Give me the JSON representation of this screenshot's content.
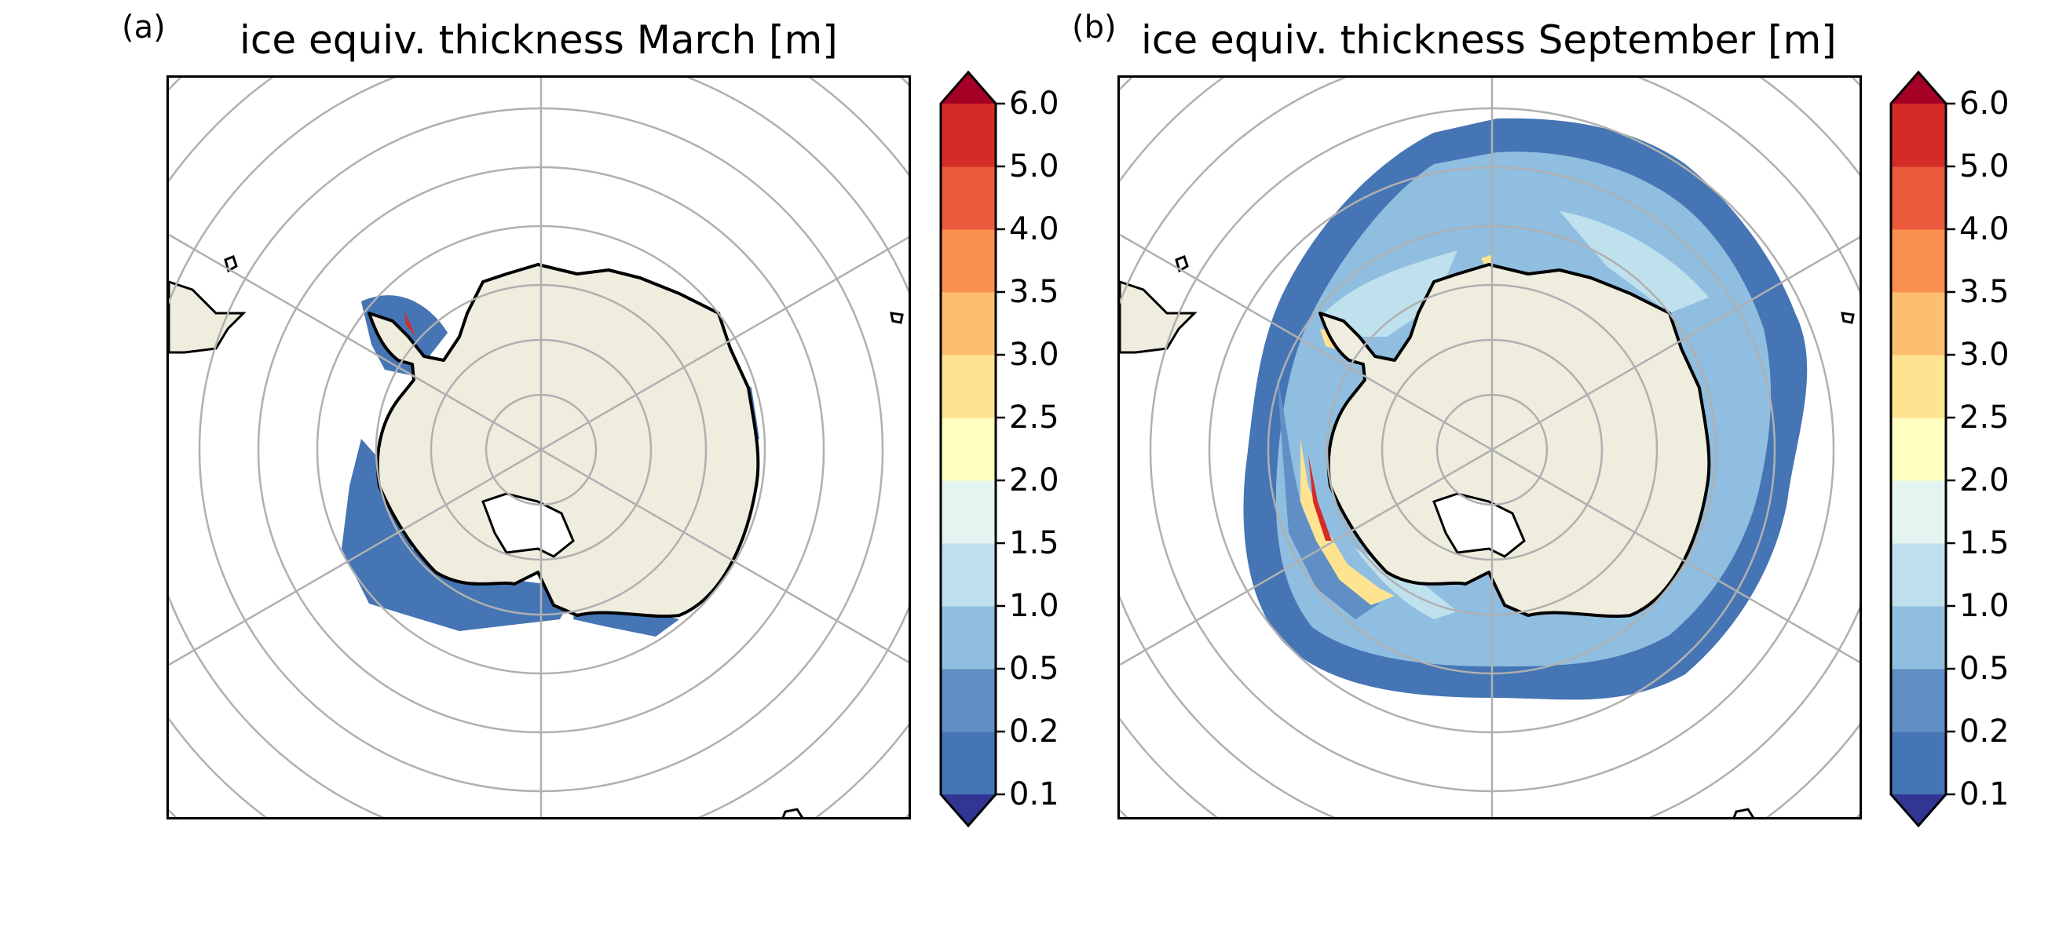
{
  "panels": [
    {
      "label": "(a)",
      "title": "ice equiv. thickness March [m]"
    },
    {
      "label": "(b)",
      "title": "ice equiv. thickness September [m]"
    }
  ],
  "colorbar": {
    "tick_labels": [
      "0.1",
      "0.2",
      "0.5",
      "1.0",
      "1.5",
      "2.0",
      "2.5",
      "3.0",
      "3.5",
      "4.0",
      "5.0",
      "6.0"
    ],
    "under_color": "#313695",
    "over_color": "#a50026",
    "level_colors": [
      "#4575b4",
      "#5f8fc4",
      "#8fbee0",
      "#bfe0ed",
      "#e3f4f1",
      "#ffffbf",
      "#fee391",
      "#fdbf6f",
      "#fa9050",
      "#ec5a3e",
      "#d52b27"
    ]
  },
  "colors": {
    "land": "#efedde",
    "coast": "#000000",
    "gridlines": "#b0b0b0"
  }
}
